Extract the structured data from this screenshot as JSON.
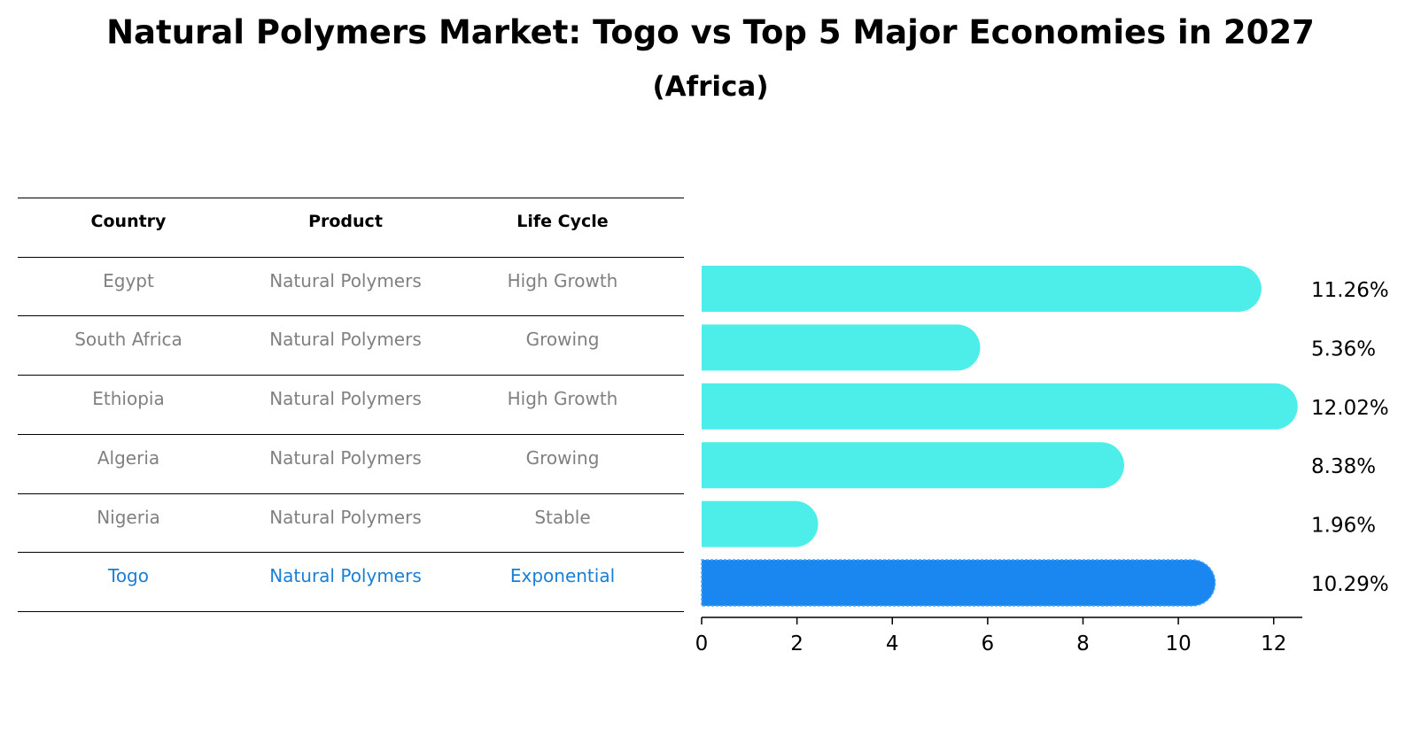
{
  "title": "Natural Polymers Market: Togo vs Top 5 Major Economies in 2027",
  "subtitle": "(Africa)",
  "table": {
    "headers": [
      "Country",
      "Product",
      "Life Cycle"
    ],
    "rows": [
      {
        "country": "Egypt",
        "product": "Natural Polymers",
        "life_cycle": "High Growth"
      },
      {
        "country": "South Africa",
        "product": "Natural Polymers",
        "life_cycle": "Growing"
      },
      {
        "country": "Ethiopia",
        "product": "Natural Polymers",
        "life_cycle": "High Growth"
      },
      {
        "country": "Algeria",
        "product": "Natural Polymers",
        "life_cycle": "Growing"
      },
      {
        "country": "Nigeria",
        "product": "Natural Polymers",
        "life_cycle": "Stable"
      },
      {
        "country": "Togo",
        "product": "Natural Polymers",
        "life_cycle": "Exponential"
      }
    ]
  },
  "colors": {
    "bar": "#4deeea",
    "highlight_bar": "#1a86f0",
    "highlight_text": "#1a7fd4",
    "muted_text": "#808080"
  },
  "chart_data": {
    "type": "bar",
    "orientation": "horizontal",
    "categories": [
      "Egypt",
      "South Africa",
      "Ethiopia",
      "Algeria",
      "Nigeria",
      "Togo"
    ],
    "values": [
      11.26,
      5.36,
      12.02,
      8.38,
      1.96,
      10.29
    ],
    "value_labels": [
      "11.26%",
      "5.36%",
      "12.02%",
      "8.38%",
      "1.96%",
      "10.29%"
    ],
    "highlight": "Togo",
    "xlim": [
      0,
      12.6
    ],
    "xticks": [
      0,
      2,
      4,
      6,
      8,
      10,
      12
    ],
    "grid": false
  }
}
